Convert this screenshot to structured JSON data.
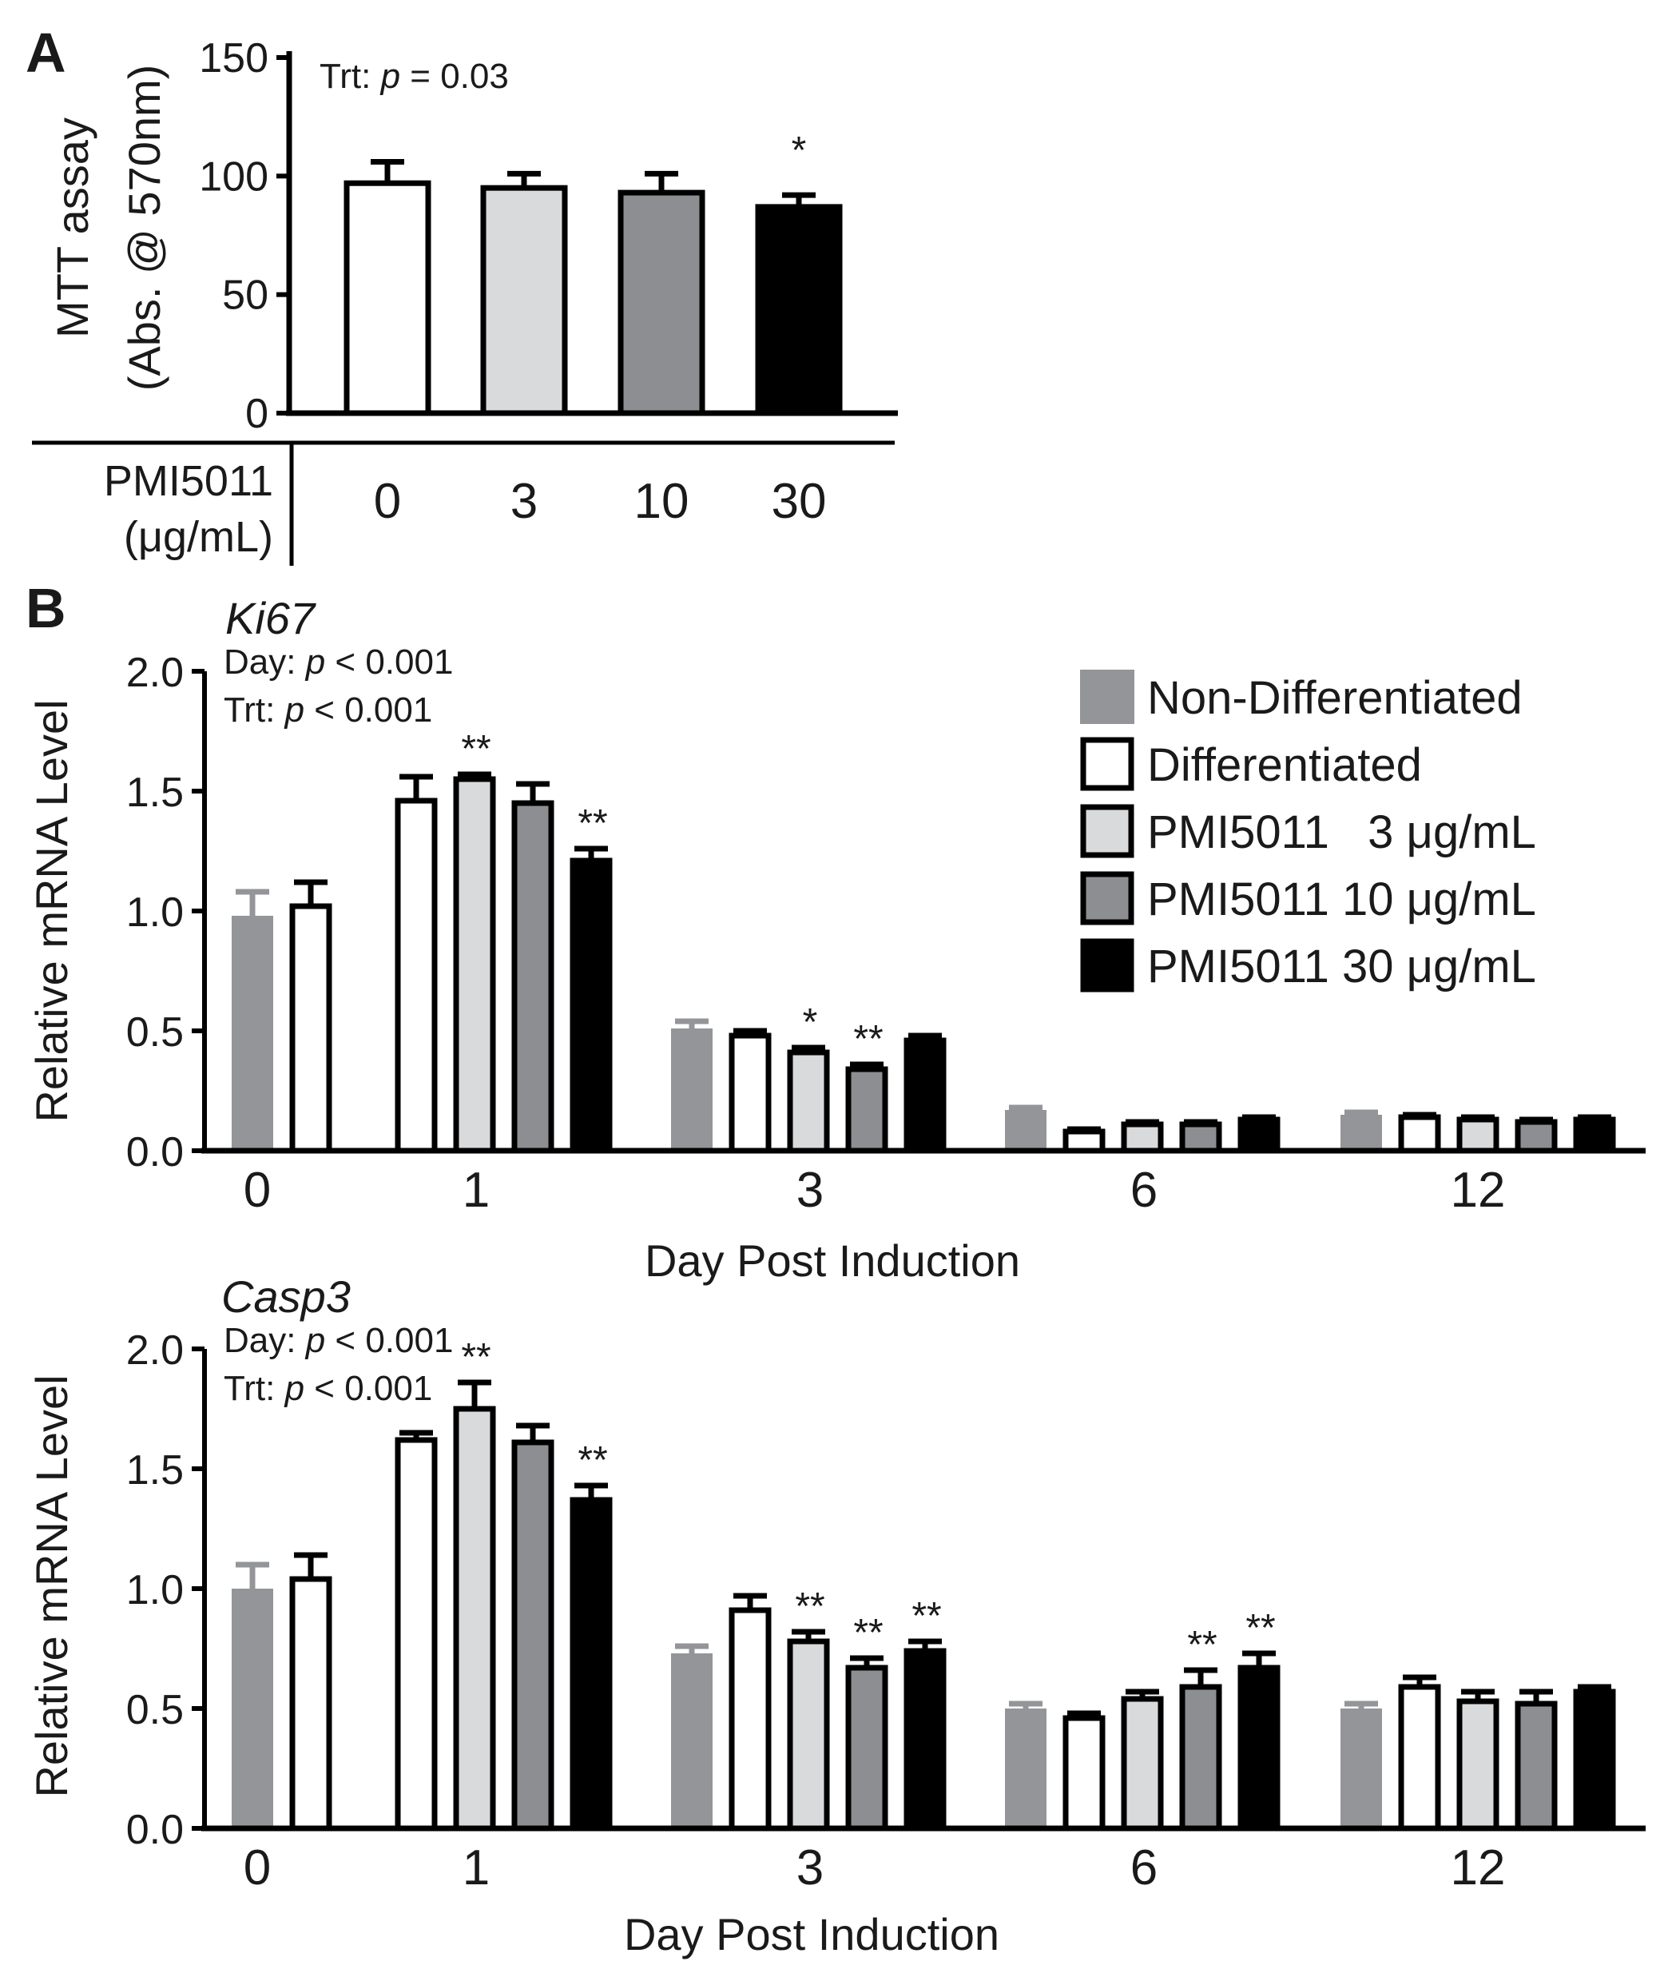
{
  "colors": {
    "non_differentiated": "#939598",
    "differentiated": "#ffffff",
    "pmi_3": "#d9dadb",
    "pmi_10": "#8c8e91",
    "pmi_30": "#000000",
    "stroke": "#000000"
  },
  "chart_data": [
    {
      "id": "A",
      "type": "bar",
      "panel_label": "A",
      "ylabel": "MTT assay",
      "ylabel_units": "(Abs. @ 570nm)",
      "ylim": [
        0,
        150
      ],
      "yticks": [
        "0",
        "50",
        "100",
        "150"
      ],
      "stat_text": "Trt: p = 0.03",
      "stat_prefix": "Trt: ",
      "stat_p": "p",
      "stat_suffix": " = 0.03",
      "xlabel_line1": "PMI5011",
      "xlabel_line2": "(μg/mL)",
      "categories": [
        "0",
        "3",
        "10",
        "30"
      ],
      "values": [
        97,
        95,
        93,
        87
      ],
      "errors": [
        9,
        6,
        8,
        5
      ],
      "fills": [
        "differentiated",
        "pmi_3",
        "pmi_10",
        "pmi_30"
      ],
      "significance": [
        "",
        "",
        "",
        "*"
      ]
    },
    {
      "id": "B1",
      "type": "bar",
      "panel_label": "B",
      "gene": "Ki67",
      "ylabel": "Relative mRNA Level",
      "xlabel": "Day Post Induction",
      "ylim": [
        0,
        2.0
      ],
      "yticks": [
        "0.0",
        "0.5",
        "1.0",
        "1.5",
        "2.0"
      ],
      "stat_day_prefix": "Day: ",
      "stat_day_p": "p",
      "stat_day_suffix": " < 0.001",
      "stat_trt_prefix": "Trt: ",
      "stat_trt_p": "p",
      "stat_trt_suffix": " < 0.001",
      "categories": [
        "0",
        "1",
        "3",
        "6",
        "12"
      ],
      "series": [
        {
          "name": "Non-Differentiated",
          "fill": "non_differentiated",
          "values": [
            0.98,
            null,
            0.51,
            0.17,
            0.15
          ],
          "errors": [
            0.1,
            null,
            0.03,
            0.01,
            0.01
          ],
          "stars": [
            "",
            "",
            "",
            "",
            ""
          ]
        },
        {
          "name": "Differentiated",
          "fill": "differentiated",
          "values": [
            1.02,
            1.46,
            0.48,
            0.08,
            0.14
          ],
          "errors": [
            0.1,
            0.1,
            0.02,
            0.01,
            0.01
          ],
          "stars": [
            "",
            "",
            "",
            "",
            ""
          ]
        },
        {
          "name": "PMI5011 3 μg/mL",
          "fill": "pmi_3",
          "values": [
            null,
            1.55,
            0.41,
            0.11,
            0.13
          ],
          "errors": [
            null,
            0.02,
            0.02,
            0.01,
            0.01
          ],
          "stars": [
            "",
            "**",
            "*",
            "",
            ""
          ]
        },
        {
          "name": "PMI5011 10 μg/mL",
          "fill": "pmi_10",
          "values": [
            null,
            1.45,
            0.34,
            0.11,
            0.12
          ],
          "errors": [
            null,
            0.08,
            0.02,
            0.01,
            0.01
          ],
          "stars": [
            "",
            "",
            "**",
            "",
            ""
          ]
        },
        {
          "name": "PMI5011 30 μg/mL",
          "fill": "pmi_30",
          "values": [
            null,
            1.21,
            0.46,
            0.13,
            0.13
          ],
          "errors": [
            null,
            0.05,
            0.02,
            0.01,
            0.01
          ],
          "stars": [
            "",
            "**",
            "",
            "",
            ""
          ]
        }
      ],
      "bar_layout": [
        [
          "Non-Differentiated",
          "Differentiated"
        ],
        [
          "Differentiated",
          "PMI5011 3 μg/mL",
          "PMI5011 10 μg/mL",
          "PMI5011 30 μg/mL"
        ],
        [
          "Non-Differentiated",
          "Differentiated",
          "PMI5011 3 μg/mL",
          "PMI5011 10 μg/mL",
          "PMI5011 30 μg/mL"
        ],
        [
          "Non-Differentiated",
          "Differentiated",
          "PMI5011 3 μg/mL",
          "PMI5011 10 μg/mL",
          "PMI5011 30 μg/mL"
        ],
        [
          "Non-Differentiated",
          "Differentiated",
          "PMI5011 3 μg/mL",
          "PMI5011 10 μg/mL",
          "PMI5011 30 μg/mL"
        ]
      ],
      "legend": [
        {
          "label": "Non-Differentiated",
          "fill": "non_differentiated"
        },
        {
          "label": "Differentiated",
          "fill": "differentiated"
        },
        {
          "label": "PMI5011   3 μg/mL",
          "fill": "pmi_3"
        },
        {
          "label": "PMI5011 10 μg/mL",
          "fill": "pmi_10"
        },
        {
          "label": "PMI5011 30 μg/mL",
          "fill": "pmi_30"
        }
      ],
      "legend_position": "top-right"
    },
    {
      "id": "B2",
      "type": "bar",
      "gene": "Casp3",
      "ylabel": "Relative mRNA Level",
      "xlabel": "Day Post Induction",
      "ylim": [
        0,
        2.0
      ],
      "yticks": [
        "0.0",
        "0.5",
        "1.0",
        "1.5",
        "2.0"
      ],
      "stat_day_prefix": "Day: ",
      "stat_day_p": "p",
      "stat_day_suffix": " < 0.001",
      "stat_trt_prefix": "Trt: ",
      "stat_trt_p": "p",
      "stat_trt_suffix": " < 0.001",
      "categories": [
        "0",
        "1",
        "3",
        "6",
        "12"
      ],
      "series": [
        {
          "name": "Non-Differentiated",
          "fill": "non_differentiated",
          "values": [
            1.0,
            null,
            0.73,
            0.5,
            0.5
          ],
          "errors": [
            0.1,
            null,
            0.03,
            0.02,
            0.02
          ],
          "stars": [
            "",
            "",
            "",
            "",
            ""
          ]
        },
        {
          "name": "Differentiated",
          "fill": "differentiated",
          "values": [
            1.04,
            1.62,
            0.91,
            0.46,
            0.59
          ],
          "errors": [
            0.1,
            0.03,
            0.06,
            0.02,
            0.04
          ],
          "stars": [
            "",
            "",
            "",
            "",
            ""
          ]
        },
        {
          "name": "PMI5011 3 μg/mL",
          "fill": "pmi_3",
          "values": [
            null,
            1.75,
            0.78,
            0.54,
            0.53
          ],
          "errors": [
            null,
            0.11,
            0.04,
            0.03,
            0.04
          ],
          "stars": [
            "",
            "**",
            "**",
            "",
            ""
          ]
        },
        {
          "name": "PMI5011 10 μg/mL",
          "fill": "pmi_10",
          "values": [
            null,
            1.61,
            0.67,
            0.59,
            0.52
          ],
          "errors": [
            null,
            0.07,
            0.04,
            0.07,
            0.05
          ],
          "stars": [
            "",
            "",
            "**",
            "**",
            ""
          ]
        },
        {
          "name": "PMI5011 30 μg/mL",
          "fill": "pmi_30",
          "values": [
            null,
            1.37,
            0.74,
            0.67,
            0.57
          ],
          "errors": [
            null,
            0.06,
            0.04,
            0.06,
            0.02
          ],
          "stars": [
            "",
            "**",
            "**",
            "**",
            ""
          ]
        }
      ],
      "bar_layout": [
        [
          "Non-Differentiated",
          "Differentiated"
        ],
        [
          "Differentiated",
          "PMI5011 3 μg/mL",
          "PMI5011 10 μg/mL",
          "PMI5011 30 μg/mL"
        ],
        [
          "Non-Differentiated",
          "Differentiated",
          "PMI5011 3 μg/mL",
          "PMI5011 10 μg/mL",
          "PMI5011 30 μg/mL"
        ],
        [
          "Non-Differentiated",
          "Differentiated",
          "PMI5011 3 μg/mL",
          "PMI5011 10 μg/mL",
          "PMI5011 30 μg/mL"
        ],
        [
          "Non-Differentiated",
          "Differentiated",
          "PMI5011 3 μg/mL",
          "PMI5011 10 μg/mL",
          "PMI5011 30 μg/mL"
        ]
      ]
    }
  ]
}
